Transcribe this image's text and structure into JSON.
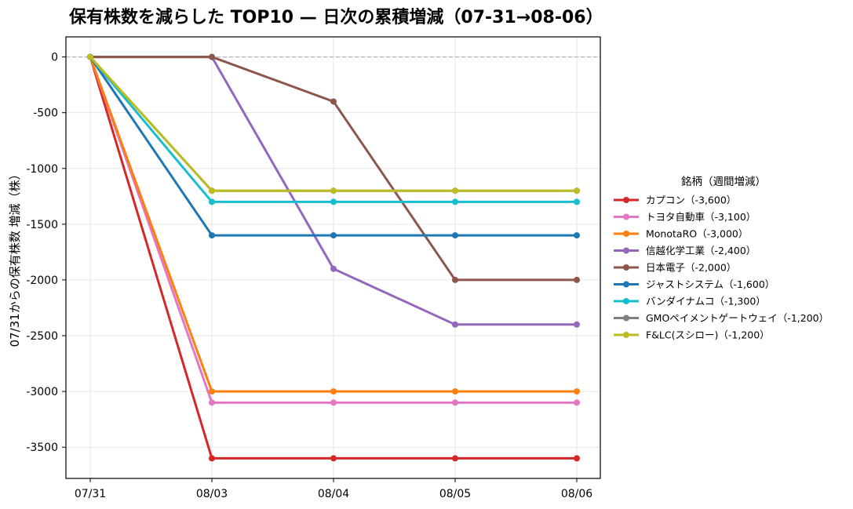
{
  "chart_data": {
    "type": "line",
    "title": "保有株数を減らした TOP10 — 日次の累積増減（07-31→08-06）",
    "xlabel": "",
    "ylabel": "07/31からの保有株数 増減（株）",
    "categories": [
      "07/31",
      "08/03",
      "08/04",
      "08/05",
      "08/06"
    ],
    "ylim": [
      -3780,
      180
    ],
    "yticks": [
      0,
      -500,
      -1000,
      -1500,
      -2000,
      -2500,
      -3000,
      -3500
    ],
    "grid": true,
    "zero_line": true,
    "legend": {
      "title": "銘柄（週間増減）",
      "placement": "right"
    },
    "series": [
      {
        "name": "カプコン（-3,600）",
        "color": "#d62728",
        "values": [
          0,
          -3600,
          -3600,
          -3600,
          -3600
        ]
      },
      {
        "name": "トヨタ自動車（-3,100）",
        "color": "#e377c2",
        "values": [
          0,
          -3100,
          -3100,
          -3100,
          -3100
        ]
      },
      {
        "name": "MonotaRO（-3,000）",
        "color": "#ff7f0e",
        "values": [
          0,
          -3000,
          -3000,
          -3000,
          -3000
        ]
      },
      {
        "name": "信越化学工業（-2,400）",
        "color": "#9467bd",
        "values": [
          0,
          0,
          -1900,
          -2400,
          -2400
        ]
      },
      {
        "name": "日本電子（-2,000）",
        "color": "#8c564b",
        "values": [
          0,
          0,
          -400,
          -2000,
          -2000
        ]
      },
      {
        "name": "ジャストシステム（-1,600）",
        "color": "#1f77b4",
        "values": [
          0,
          -1600,
          -1600,
          -1600,
          -1600
        ]
      },
      {
        "name": "バンダイナムコ（-1,300）",
        "color": "#17becf",
        "values": [
          0,
          -1300,
          -1300,
          -1300,
          -1300
        ]
      },
      {
        "name": "GMOペイメントゲートウェイ（-1,200）",
        "color": "#7f7f7f",
        "values": [
          0,
          -1200,
          -1200,
          -1200,
          -1200
        ]
      },
      {
        "name": "F&LC(スシロー)（-1,200）",
        "color": "#bcbd22",
        "values": [
          0,
          -1200,
          -1200,
          -1200,
          -1200
        ]
      }
    ]
  }
}
